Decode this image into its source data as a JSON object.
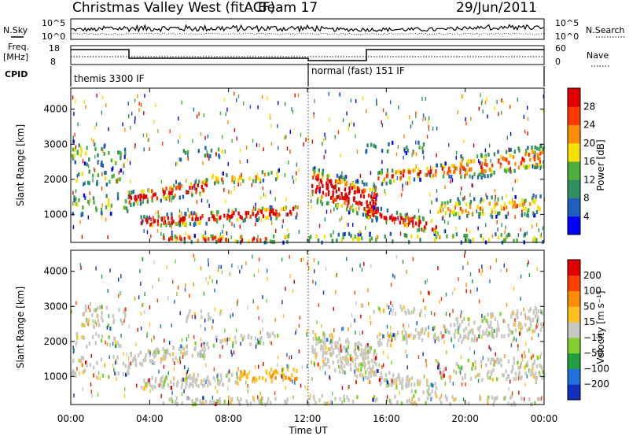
{
  "header": {
    "title": "Christmas Valley West (fitACF)",
    "beam": "Beam 17",
    "date": "29/Jun/2011"
  },
  "panels": {
    "nsky_label": "N.Sky",
    "nsearch_label": "N.Search",
    "freq_label_line1": "Freq.",
    "freq_label_line2": "[MHz]",
    "nave_label": "Nave",
    "cpid_label": "CPID",
    "nsky_ticks": [
      "10^5",
      "10^0"
    ],
    "nsearch_ticks": [
      "10^5",
      "10^0"
    ],
    "freq_ticks": [
      "18",
      "8"
    ],
    "nave_ticks": [
      "60",
      "0"
    ],
    "cpid_segments": [
      {
        "label": "themis 3300 IF",
        "start_hour": 0,
        "end_hour": 12
      },
      {
        "label": "normal (fast) 151 IF",
        "start_hour": 12,
        "end_hour": 24
      }
    ]
  },
  "chart_data": [
    {
      "type": "heatmap",
      "name": "power",
      "xlabel": "",
      "ylabel": "Slant Range [km]",
      "xlim": [
        0,
        24
      ],
      "ylim": [
        200,
        4600
      ],
      "yticks": [
        "1000",
        "2000",
        "3000",
        "4000"
      ],
      "colorbar_label": "Power [dB]",
      "colorbar_ticks": [
        "28",
        "24",
        "20",
        "16",
        "12",
        "8",
        "4"
      ],
      "colors": [
        "#0000ff",
        "#1f5fbf",
        "#2f8f5f",
        "#4caf3c",
        "#f7e000",
        "#ff8c00",
        "#ff3b00",
        "#e00000"
      ]
    },
    {
      "type": "heatmap",
      "name": "velocity",
      "xlabel": "Time UT",
      "ylabel": "Slant Range [km]",
      "xlim": [
        0,
        24
      ],
      "ylim": [
        200,
        4600
      ],
      "yticks": [
        "1000",
        "2000",
        "3000",
        "4000"
      ],
      "xticks": [
        "00:00",
        "04:00",
        "08:00",
        "12:00",
        "16:00",
        "20:00",
        "00:00"
      ],
      "colorbar_label": "Velocity [m s⁻¹]",
      "colorbar_ticks": [
        "200",
        "100",
        "50",
        "15",
        "−15",
        "−50",
        "−100",
        "−200"
      ],
      "colors": [
        "#1030c0",
        "#2070e0",
        "#20a040",
        "#80d030",
        "#c8c8c0",
        "#ffc020",
        "#ff8c00",
        "#ff4000",
        "#e00000"
      ]
    }
  ]
}
